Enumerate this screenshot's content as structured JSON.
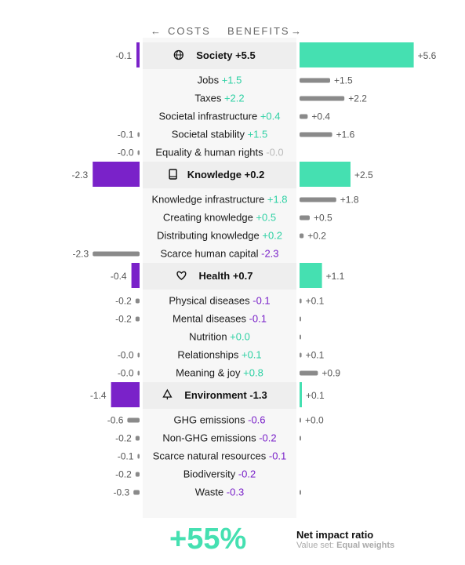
{
  "header": {
    "costs": "COSTS",
    "benefits": "BENEFITS",
    "left_arrow": "←",
    "right_arrow": "→"
  },
  "colors": {
    "cost": "#7a22c9",
    "benefit": "#45e0b1",
    "sub_bar": "#8a8a8a",
    "pos_text": "#2fd1a4",
    "neg_text": "#7a22c9",
    "zero_text": "#bbbbbb",
    "band": "#f3f3f3"
  },
  "chart_data": {
    "type": "bar",
    "groups": [
      {
        "name": "Society",
        "icon": "globe-icon",
        "net": "+5.5",
        "cost": -0.1,
        "benefit": 5.6,
        "cost_label": "-0.1",
        "benefit_label": "+5.6",
        "items": [
          {
            "name": "Jobs",
            "net": "+1.5",
            "cost": null,
            "benefit": 1.5,
            "cost_label": "",
            "benefit_label": "+1.5"
          },
          {
            "name": "Taxes",
            "net": "+2.2",
            "cost": null,
            "benefit": 2.2,
            "cost_label": "",
            "benefit_label": "+2.2"
          },
          {
            "name": "Societal infrastructure",
            "net": "+0.4",
            "cost": null,
            "benefit": 0.4,
            "cost_label": "",
            "benefit_label": "+0.4"
          },
          {
            "name": "Societal stability",
            "net": "+1.5",
            "cost": -0.1,
            "benefit": 1.6,
            "cost_label": "-0.1",
            "benefit_label": "+1.6"
          },
          {
            "name": "Equality & human rights",
            "net": "-0.0",
            "cost": -0.0,
            "benefit": null,
            "cost_label": "-0.0",
            "benefit_label": ""
          }
        ]
      },
      {
        "name": "Knowledge",
        "icon": "book-icon",
        "net": "+0.2",
        "cost": -2.3,
        "benefit": 2.5,
        "cost_label": "-2.3",
        "benefit_label": "+2.5",
        "items": [
          {
            "name": "Knowledge infrastructure",
            "net": "+1.8",
            "cost": null,
            "benefit": 1.8,
            "cost_label": "",
            "benefit_label": "+1.8"
          },
          {
            "name": "Creating knowledge",
            "net": "+0.5",
            "cost": null,
            "benefit": 0.5,
            "cost_label": "",
            "benefit_label": "+0.5"
          },
          {
            "name": "Distributing knowledge",
            "net": "+0.2",
            "cost": null,
            "benefit": 0.2,
            "cost_label": "",
            "benefit_label": "+0.2"
          },
          {
            "name": "Scarce human capital",
            "net": "-2.3",
            "cost": -2.3,
            "benefit": null,
            "cost_label": "-2.3",
            "benefit_label": ""
          }
        ]
      },
      {
        "name": "Health",
        "icon": "heart-icon",
        "net": "+0.7",
        "cost": -0.4,
        "benefit": 1.1,
        "cost_label": "-0.4",
        "benefit_label": "+1.1",
        "items": [
          {
            "name": "Physical diseases",
            "net": "-0.1",
            "cost": -0.2,
            "benefit": 0.1,
            "cost_label": "-0.2",
            "benefit_label": "+0.1"
          },
          {
            "name": "Mental diseases",
            "net": "-0.1",
            "cost": -0.2,
            "benefit": 0.0,
            "cost_label": "-0.2",
            "benefit_label": ""
          },
          {
            "name": "Nutrition",
            "net": "+0.0",
            "cost": null,
            "benefit": 0.0,
            "cost_label": "",
            "benefit_label": ""
          },
          {
            "name": "Relationships",
            "net": "+0.1",
            "cost": -0.0,
            "benefit": 0.1,
            "cost_label": "-0.0",
            "benefit_label": "+0.1"
          },
          {
            "name": "Meaning & joy",
            "net": "+0.8",
            "cost": -0.0,
            "benefit": 0.9,
            "cost_label": "-0.0",
            "benefit_label": "+0.9"
          }
        ]
      },
      {
        "name": "Environment",
        "icon": "tree-icon",
        "net": "-1.3",
        "cost": -1.4,
        "benefit": 0.1,
        "cost_label": "-1.4",
        "benefit_label": "+0.1",
        "items": [
          {
            "name": "GHG emissions",
            "net": "-0.6",
            "cost": -0.6,
            "benefit": 0.0,
            "cost_label": "-0.6",
            "benefit_label": "+0.0"
          },
          {
            "name": "Non-GHG emissions",
            "net": "-0.2",
            "cost": -0.2,
            "benefit": 0.0,
            "cost_label": "-0.2",
            "benefit_label": ""
          },
          {
            "name": "Scarce natural resources",
            "net": "-0.1",
            "cost": -0.1,
            "benefit": null,
            "cost_label": "-0.1",
            "benefit_label": ""
          },
          {
            "name": "Biodiversity",
            "net": "-0.2",
            "cost": -0.2,
            "benefit": null,
            "cost_label": "-0.2",
            "benefit_label": ""
          },
          {
            "name": "Waste",
            "net": "-0.3",
            "cost": -0.3,
            "benefit": 0.0,
            "cost_label": "-0.3",
            "benefit_label": ""
          }
        ]
      }
    ]
  },
  "footer": {
    "ratio": "+55%",
    "title": "Net impact ratio",
    "value_set_label": "Value set:",
    "value_set": "Equal weights"
  }
}
